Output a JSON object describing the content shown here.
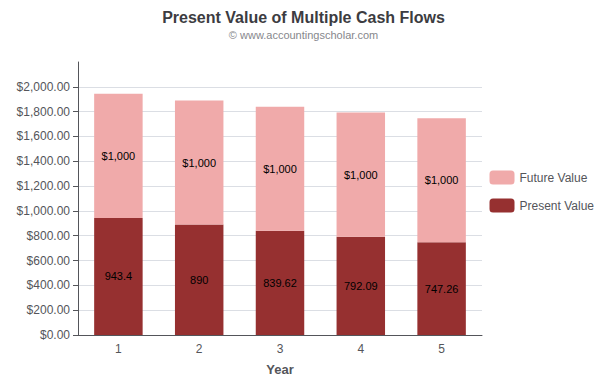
{
  "chart_data": {
    "type": "bar",
    "title": "Present Value of Multiple Cash Flows",
    "subtitle": "© www.accountingscholar.com",
    "xlabel": "Year",
    "categories": [
      "1",
      "2",
      "3",
      "4",
      "5"
    ],
    "series": [
      {
        "name": "Present Value",
        "color": "#963030",
        "values": [
          943.4,
          890.0,
          839.62,
          792.09,
          747.26
        ],
        "value_labels": [
          "943.4",
          "890",
          "839.62",
          "792.09",
          "747.26"
        ]
      },
      {
        "name": "Future Value",
        "color": "#F0AAAA",
        "values": [
          1000,
          1000,
          1000,
          1000,
          1000
        ],
        "value_labels": [
          "$1,000",
          "$1,000",
          "$1,000",
          "$1,000",
          "$1,000"
        ]
      }
    ],
    "stacked": true,
    "data_labels": true,
    "ylim": [
      0,
      2200
    ],
    "yticks": [
      {
        "value": 0,
        "label": "$0.00"
      },
      {
        "value": 200,
        "label": "$200.00"
      },
      {
        "value": 400,
        "label": "$400.00"
      },
      {
        "value": 600,
        "label": "$600.00"
      },
      {
        "value": 800,
        "label": "$800.00"
      },
      {
        "value": 1000,
        "label": "$1,000.00"
      },
      {
        "value": 1200,
        "label": "$1,200.00"
      },
      {
        "value": 1400,
        "label": "$1,400.00"
      },
      {
        "value": 1600,
        "label": "$1,600.00"
      },
      {
        "value": 1800,
        "label": "$1,800.00"
      },
      {
        "value": 2000,
        "label": "$2,000.00"
      }
    ],
    "grid": true,
    "legend": "right"
  }
}
